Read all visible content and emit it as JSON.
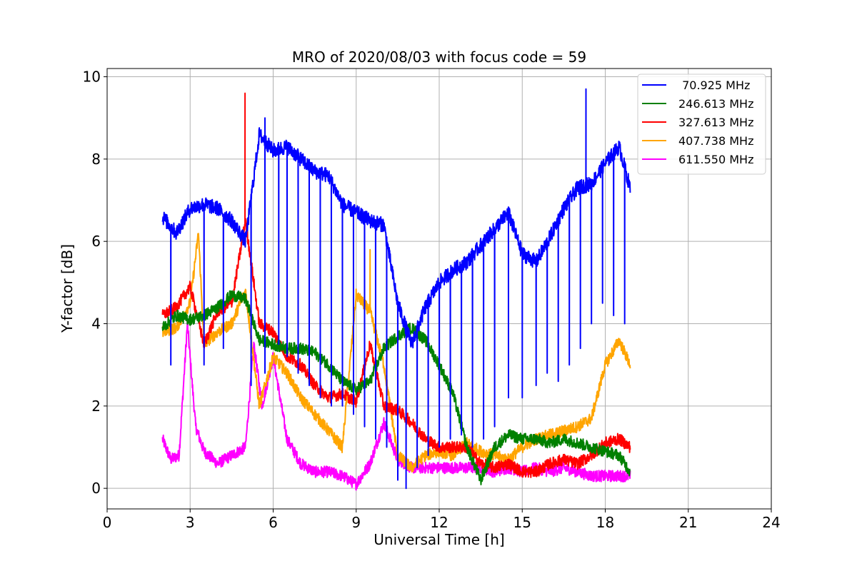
{
  "chart_data": {
    "type": "line",
    "title": "MRO of 2020/08/03 with focus code = 59",
    "xlabel": "Universal Time [h]",
    "ylabel": "Y-factor [dB]",
    "xlim": [
      0,
      24
    ],
    "ylim": [
      -0.5,
      10.2
    ],
    "xticks": [
      0,
      3,
      6,
      9,
      12,
      15,
      18,
      21,
      24
    ],
    "yticks": [
      0,
      2,
      4,
      6,
      8,
      10
    ],
    "grid": true,
    "legend_position": "top-right",
    "series": [
      {
        "name": " 70.925 MHz",
        "color": "#0000ff",
        "x": [
          2.0,
          2.5,
          3.0,
          3.5,
          4.0,
          4.5,
          5.0,
          5.5,
          6.0,
          6.5,
          7.0,
          7.5,
          8.0,
          8.5,
          9.0,
          9.5,
          10.0,
          10.5,
          11.0,
          11.5,
          12.0,
          12.5,
          13.0,
          13.5,
          14.0,
          14.5,
          15.0,
          15.5,
          16.0,
          16.5,
          17.0,
          17.5,
          18.0,
          18.5,
          18.9
        ],
        "y": [
          6.6,
          6.2,
          6.8,
          6.9,
          6.8,
          6.5,
          6.0,
          8.6,
          8.2,
          8.3,
          8.0,
          7.7,
          7.6,
          6.9,
          6.7,
          6.5,
          6.4,
          4.5,
          3.5,
          4.4,
          5.0,
          5.3,
          5.5,
          5.9,
          6.3,
          6.7,
          5.7,
          5.5,
          6.1,
          6.8,
          7.3,
          7.4,
          7.9,
          8.3,
          7.3
        ],
        "dips": [
          {
            "x": 2.3,
            "y": 3.0
          },
          {
            "x": 3.5,
            "y": 3.0
          },
          {
            "x": 4.2,
            "y": 3.4
          },
          {
            "x": 5.2,
            "y": 2.5
          },
          {
            "x": 5.7,
            "y": 2.8
          },
          {
            "x": 6.2,
            "y": 3.5
          },
          {
            "x": 6.5,
            "y": 3.2
          },
          {
            "x": 6.9,
            "y": 2.8
          },
          {
            "x": 7.3,
            "y": 2.5
          },
          {
            "x": 7.7,
            "y": 2.2
          },
          {
            "x": 8.1,
            "y": 2.0
          },
          {
            "x": 8.5,
            "y": 2.0
          },
          {
            "x": 8.9,
            "y": 1.8
          },
          {
            "x": 9.3,
            "y": 1.5
          },
          {
            "x": 9.7,
            "y": 1.2
          },
          {
            "x": 10.1,
            "y": 1.0
          },
          {
            "x": 10.5,
            "y": 0.2
          },
          {
            "x": 10.8,
            "y": 0.0
          },
          {
            "x": 11.2,
            "y": 0.5
          },
          {
            "x": 11.6,
            "y": 0.8
          },
          {
            "x": 12.0,
            "y": 1.0
          },
          {
            "x": 12.4,
            "y": 1.2
          },
          {
            "x": 12.8,
            "y": 1.3
          },
          {
            "x": 13.2,
            "y": 1.0
          },
          {
            "x": 13.6,
            "y": 1.2
          },
          {
            "x": 14.0,
            "y": 1.5
          },
          {
            "x": 14.5,
            "y": 2.2
          },
          {
            "x": 15.0,
            "y": 2.2
          },
          {
            "x": 15.5,
            "y": 2.5
          },
          {
            "x": 15.9,
            "y": 2.8
          },
          {
            "x": 16.3,
            "y": 2.6
          },
          {
            "x": 16.7,
            "y": 3.0
          },
          {
            "x": 17.1,
            "y": 3.4
          },
          {
            "x": 17.5,
            "y": 4.0
          },
          {
            "x": 17.9,
            "y": 4.5
          },
          {
            "x": 18.3,
            "y": 4.2
          },
          {
            "x": 18.7,
            "y": 4.0
          }
        ],
        "spikes": [
          {
            "x": 17.3,
            "y": 9.7
          },
          {
            "x": 5.7,
            "y": 9.0
          }
        ]
      },
      {
        "name": "246.613 MHz",
        "color": "#008000",
        "x": [
          2.0,
          2.5,
          3.0,
          3.5,
          4.0,
          4.5,
          5.0,
          5.5,
          6.0,
          6.5,
          7.0,
          7.5,
          8.0,
          8.5,
          9.0,
          9.5,
          10.0,
          10.5,
          11.0,
          11.5,
          12.0,
          12.5,
          13.0,
          13.5,
          14.0,
          14.5,
          15.0,
          15.5,
          16.0,
          16.5,
          17.0,
          17.5,
          18.0,
          18.5,
          18.9
        ],
        "y": [
          3.9,
          4.2,
          4.1,
          4.2,
          4.4,
          4.7,
          4.6,
          3.6,
          3.5,
          3.4,
          3.4,
          3.3,
          3.0,
          2.6,
          2.4,
          2.6,
          3.4,
          3.7,
          3.9,
          3.6,
          3.0,
          2.3,
          1.0,
          0.2,
          1.0,
          1.3,
          1.2,
          1.2,
          1.1,
          1.2,
          1.1,
          1.0,
          0.9,
          0.8,
          0.4
        ]
      },
      {
        "name": "327.613 MHz",
        "color": "#ff0000",
        "x": [
          2.0,
          2.5,
          3.0,
          3.5,
          4.0,
          4.5,
          5.0,
          5.5,
          6.0,
          6.5,
          7.0,
          7.5,
          8.0,
          8.5,
          9.0,
          9.5,
          10.0,
          10.5,
          11.0,
          11.5,
          12.0,
          12.5,
          13.0,
          13.5,
          14.0,
          14.5,
          15.0,
          15.5,
          16.0,
          16.5,
          17.0,
          17.5,
          18.0,
          18.5,
          18.9
        ],
        "y": [
          4.2,
          4.4,
          4.9,
          3.5,
          4.3,
          4.5,
          6.5,
          4.0,
          3.8,
          3.2,
          3.0,
          2.5,
          2.2,
          2.3,
          2.1,
          3.5,
          2.0,
          1.9,
          1.6,
          1.2,
          1.0,
          1.0,
          1.0,
          0.6,
          0.5,
          0.6,
          0.4,
          0.4,
          0.6,
          0.7,
          0.6,
          0.8,
          1.1,
          1.2,
          1.0
        ],
        "spikes": [
          {
            "x": 4.98,
            "y": 9.6
          }
        ]
      },
      {
        "name": "407.738 MHz",
        "color": "#ffa500",
        "x": [
          2.0,
          2.5,
          3.0,
          3.3,
          3.5,
          4.0,
          4.5,
          5.0,
          5.5,
          6.0,
          6.5,
          7.0,
          7.5,
          8.0,
          8.5,
          9.0,
          9.5,
          10.0,
          10.5,
          11.0,
          11.5,
          12.0,
          12.5,
          13.0,
          13.5,
          14.0,
          14.5,
          15.0,
          15.5,
          16.0,
          16.5,
          17.0,
          17.5,
          18.0,
          18.5,
          18.9
        ],
        "y": [
          3.8,
          3.9,
          4.5,
          6.2,
          3.5,
          3.8,
          4.0,
          4.8,
          2.0,
          3.2,
          2.8,
          2.2,
          1.8,
          1.4,
          1.0,
          4.7,
          4.3,
          3.0,
          0.8,
          0.5,
          0.8,
          0.9,
          0.8,
          1.1,
          0.9,
          0.8,
          0.7,
          1.0,
          1.2,
          1.3,
          1.4,
          1.5,
          1.7,
          3.0,
          3.6,
          3.0
        ],
        "spikes": [
          {
            "x": 9.5,
            "y": 5.8
          }
        ]
      },
      {
        "name": "611.550 MHz",
        "color": "#ff00ff",
        "x": [
          2.0,
          2.3,
          2.6,
          2.9,
          3.2,
          3.5,
          4.0,
          4.5,
          5.0,
          5.3,
          5.6,
          6.0,
          6.5,
          7.0,
          7.5,
          8.0,
          8.5,
          9.0,
          9.5,
          10.0,
          10.5,
          11.0,
          11.5,
          12.0,
          12.5,
          13.0,
          13.5,
          14.0,
          14.5,
          15.0,
          15.5,
          16.0,
          16.5,
          17.0,
          17.5,
          18.0,
          18.5,
          18.9
        ],
        "y": [
          1.2,
          0.7,
          0.8,
          4.0,
          1.5,
          0.9,
          0.6,
          0.8,
          1.0,
          3.5,
          2.0,
          3.2,
          1.2,
          0.6,
          0.4,
          0.4,
          0.3,
          0.1,
          0.6,
          1.6,
          0.7,
          0.5,
          0.5,
          0.5,
          0.5,
          0.5,
          0.5,
          0.4,
          0.5,
          0.4,
          0.5,
          0.4,
          0.5,
          0.4,
          0.3,
          0.3,
          0.3,
          0.3
        ]
      }
    ]
  }
}
